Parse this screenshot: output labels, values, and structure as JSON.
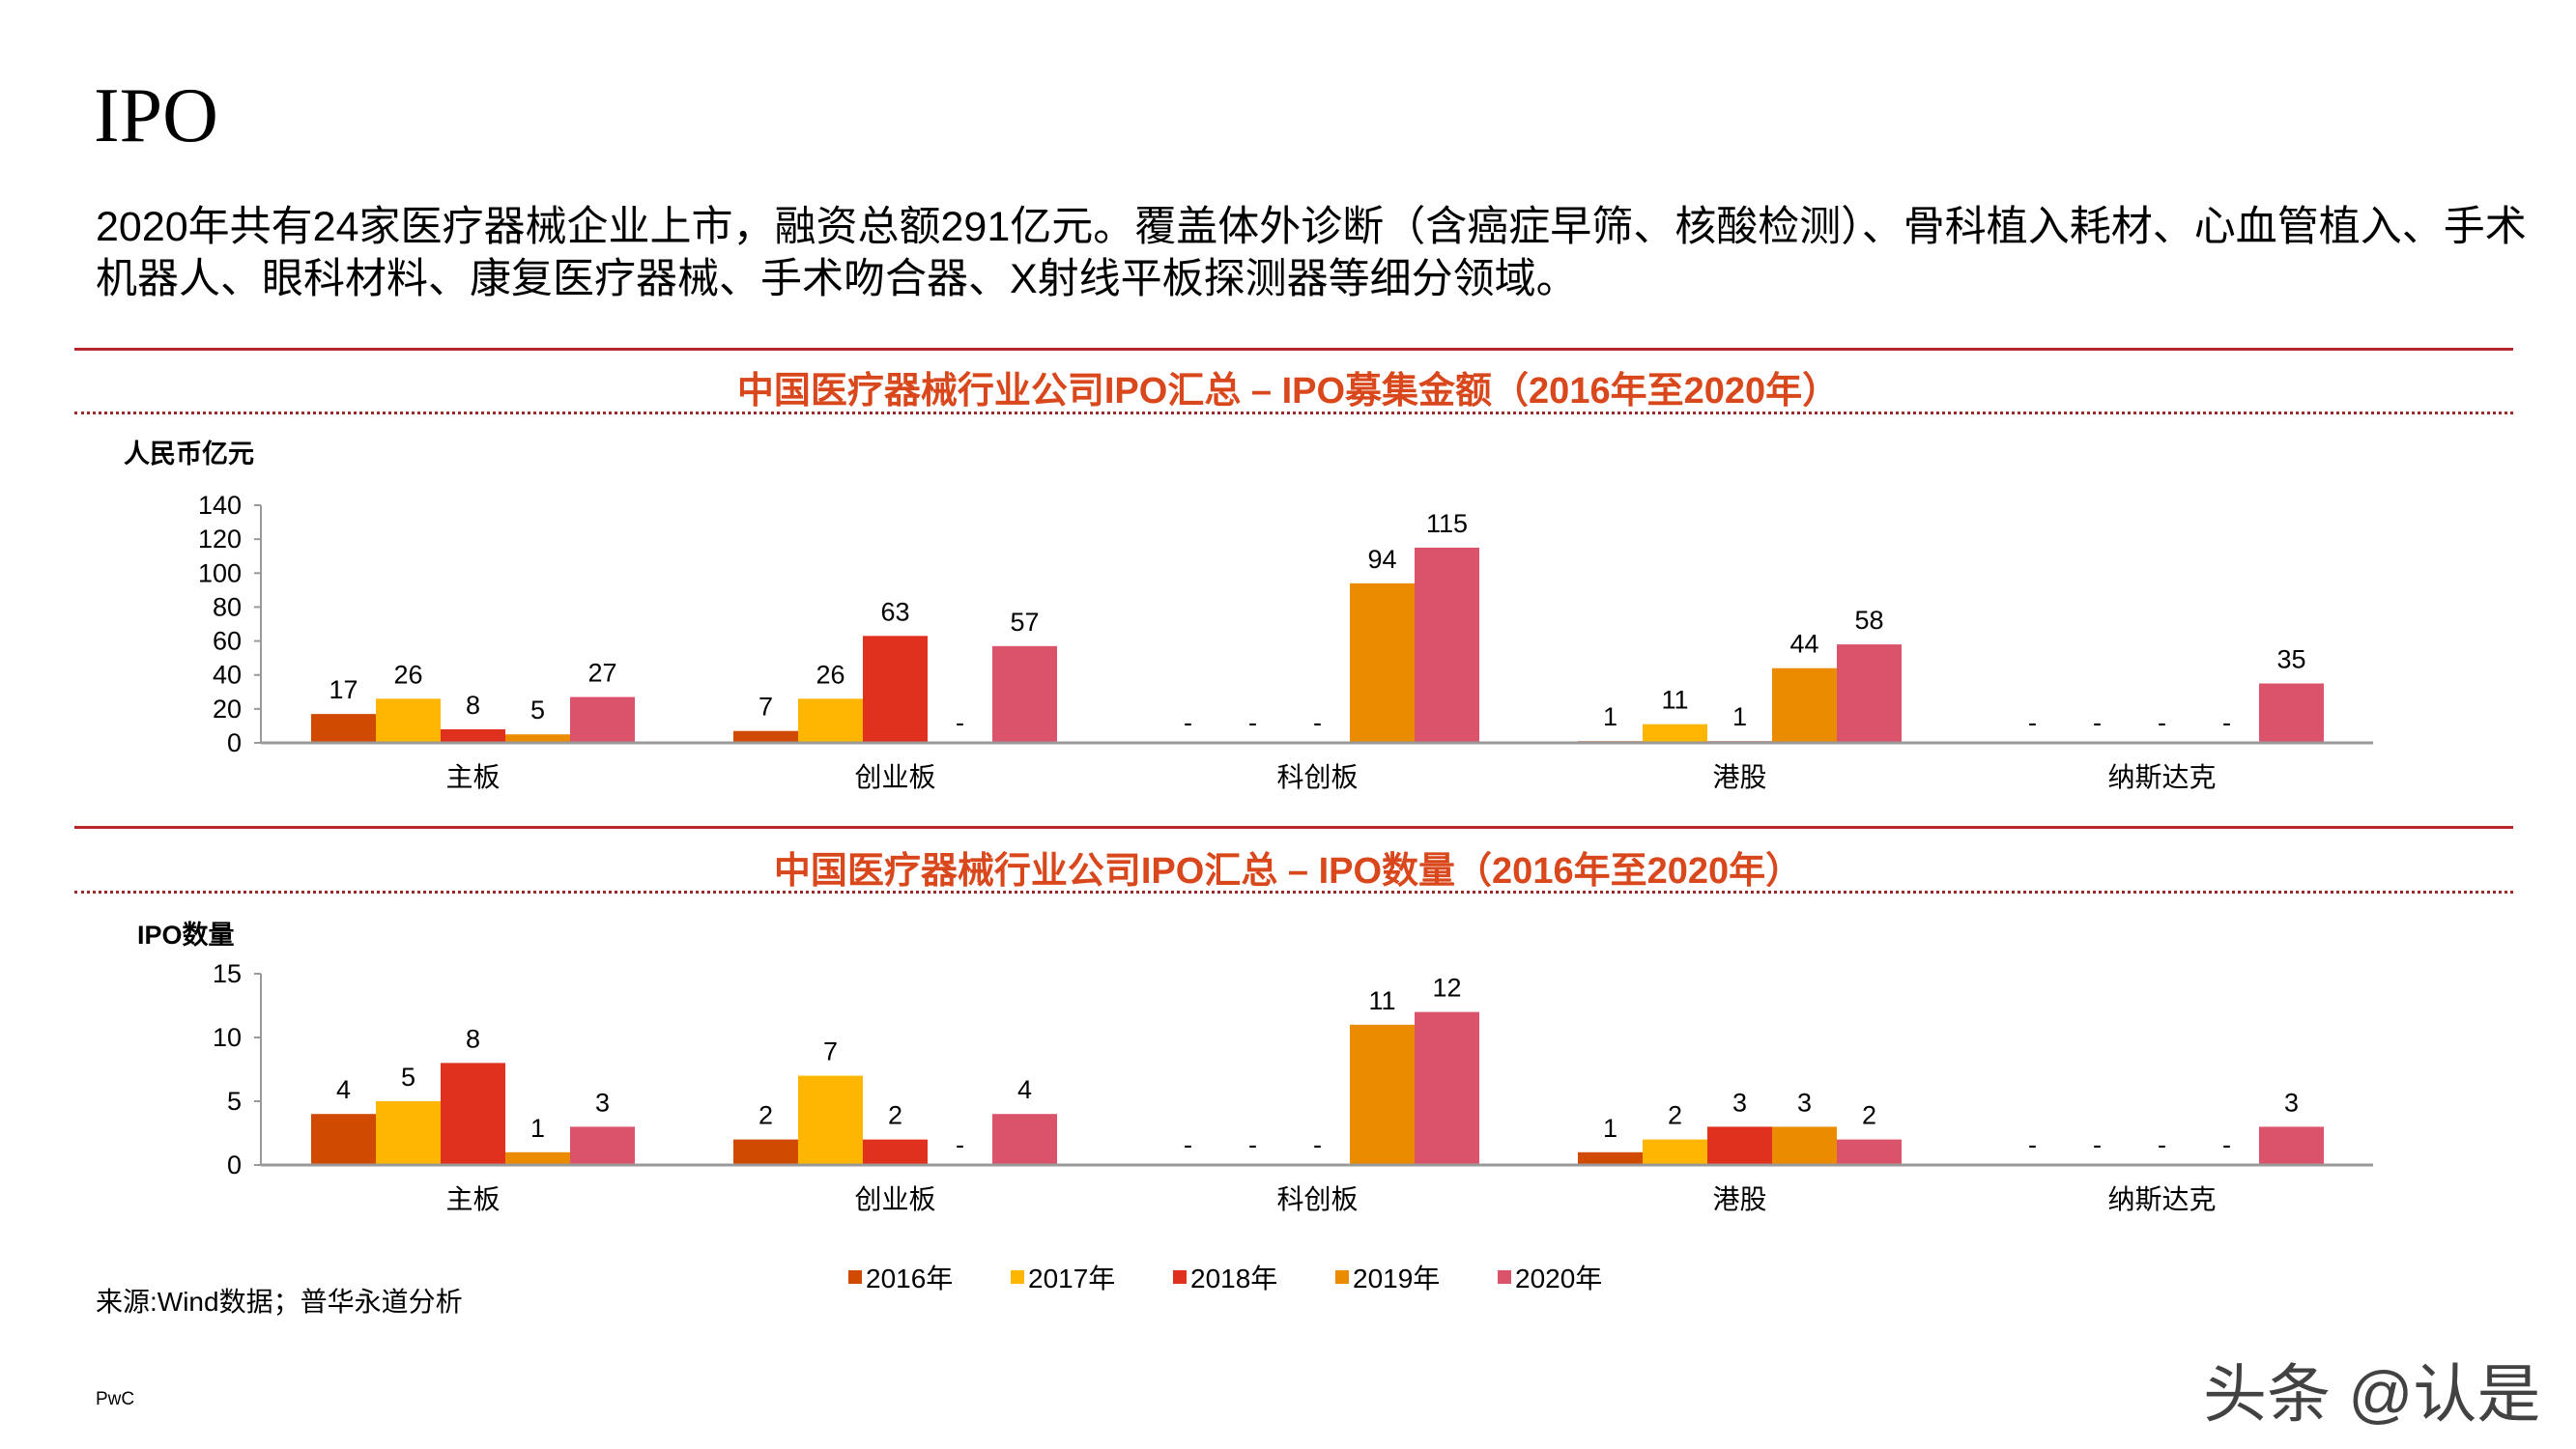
{
  "title": "IPO",
  "intro": "2020年共有24家医疗器械企业上市，融资总额291亿元。覆盖体外诊断（含癌症早筛、核酸检测）、骨科植入耗材、心血管植入、手术机器人、眼科材料、康复医疗器械、手术吻合器、X射线平板探测器等细分领域。",
  "series_colors": {
    "2016年": "#D04A02",
    "2017年": "#FFB600",
    "2018年": "#E0301E",
    "2019年": "#EB8C00",
    "2020年": "#DB536A"
  },
  "legend": [
    "2016年",
    "2017年",
    "2018年",
    "2019年",
    "2020年"
  ],
  "chart_data": [
    {
      "type": "bar",
      "title": "中国医疗器械行业公司IPO汇总 – IPO募集金额（2016年至2020年）",
      "ylabel": "人民币亿元",
      "ylim": [
        0,
        140
      ],
      "yticks": [
        0,
        20,
        40,
        60,
        80,
        100,
        120,
        140
      ],
      "categories": [
        "主板",
        "创业板",
        "科创板",
        "港股",
        "纳斯达克"
      ],
      "missing_label": "-",
      "series": [
        {
          "name": "2016年",
          "values": [
            17,
            7,
            null,
            1,
            null
          ]
        },
        {
          "name": "2017年",
          "values": [
            26,
            26,
            null,
            11,
            null
          ]
        },
        {
          "name": "2018年",
          "values": [
            8,
            63,
            null,
            1,
            null
          ]
        },
        {
          "name": "2019年",
          "values": [
            5,
            null,
            94,
            44,
            null
          ]
        },
        {
          "name": "2020年",
          "values": [
            27,
            57,
            115,
            58,
            35
          ]
        }
      ],
      "legend": "bottom",
      "grid": false
    },
    {
      "type": "bar",
      "title": "中国医疗器械行业公司IPO汇总 – IPO数量（2016年至2020年）",
      "ylabel": "IPO数量",
      "ylim": [
        0,
        15
      ],
      "yticks": [
        0,
        5,
        10,
        15
      ],
      "categories": [
        "主板",
        "创业板",
        "科创板",
        "港股",
        "纳斯达克"
      ],
      "missing_label": "-",
      "series": [
        {
          "name": "2016年",
          "values": [
            4,
            2,
            null,
            1,
            null
          ]
        },
        {
          "name": "2017年",
          "values": [
            5,
            7,
            null,
            2,
            null
          ]
        },
        {
          "name": "2018年",
          "values": [
            8,
            2,
            null,
            3,
            null
          ]
        },
        {
          "name": "2019年",
          "values": [
            1,
            null,
            11,
            3,
            null
          ]
        },
        {
          "name": "2020年",
          "values": [
            3,
            4,
            12,
            2,
            3
          ]
        }
      ],
      "legend": "bottom",
      "grid": false
    }
  ],
  "source": "来源:Wind数据；普华永道分析",
  "footer": "PwC",
  "watermark": "头条 @认是"
}
